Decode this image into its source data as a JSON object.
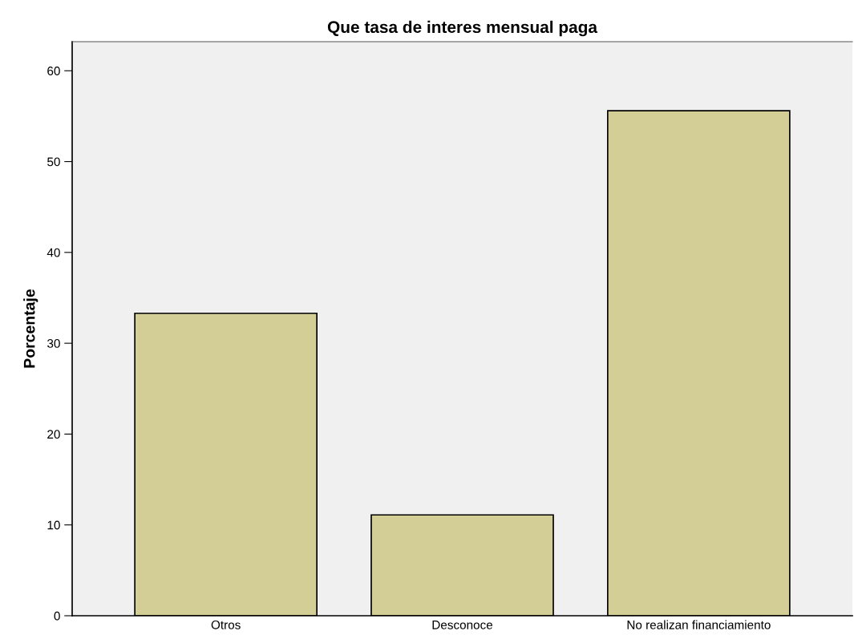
{
  "chart_data": {
    "type": "bar",
    "title": "Que tasa de interes mensual paga",
    "ylabel": "Porcentaje",
    "categories": [
      "Otros",
      "Desconoce",
      "No realizan financiamiento"
    ],
    "values": [
      33.3,
      11.1,
      55.6
    ],
    "color": "#d3ce96",
    "ylim": [
      0,
      63.2
    ],
    "yticks": [
      0,
      10,
      20,
      30,
      40,
      50,
      60
    ],
    "grid": false
  }
}
